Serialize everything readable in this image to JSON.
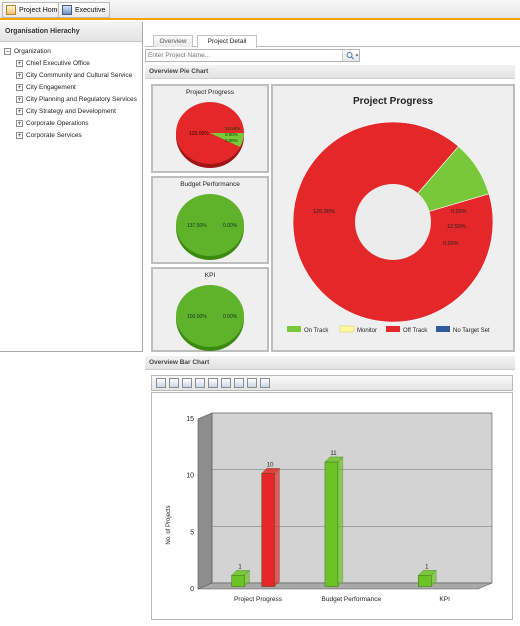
{
  "top_tabs": [
    {
      "label": "Project Home",
      "icon": "project-home-icon"
    },
    {
      "label": "Executive",
      "icon": "executive-icon"
    }
  ],
  "left_panel": {
    "title": "Organisation Hierachy",
    "root": "Organization",
    "children": [
      "Chief Executive Office",
      "City Community and Cultural Service",
      "City Engagement",
      "City Planning and Regulatory Services",
      "City Strategy and Development",
      "Corporate Operations",
      "Corporate Services"
    ]
  },
  "main_tabs": [
    "Overview",
    "Project Detail"
  ],
  "search": {
    "placeholder": "Enter Project Name..."
  },
  "pie_section": {
    "title": "Overview Pie Chart",
    "mini": [
      {
        "title": "Project Progress",
        "labels": [
          "125.00%",
          "12.50%",
          "0.00%",
          "0.00%"
        ]
      },
      {
        "title": "Budget Performance",
        "labels": [
          "137.50%",
          "0.00%"
        ]
      },
      {
        "title": "KPI",
        "labels": [
          "100.00%",
          "0.00%"
        ]
      }
    ]
  },
  "bar_section": {
    "title": "Overview Bar Chart"
  },
  "colors": {
    "on_track": "#79c83a",
    "monitor": "#fff799",
    "off_track": "#e4282a",
    "no_target": "#2f5b9a",
    "accent": "#f0a30a"
  },
  "chart_data": [
    {
      "type": "pie",
      "title": "Project Progress",
      "slices": [
        {
          "name": "Off Track",
          "value": 125.0,
          "color": "#e4282a"
        },
        {
          "name": "On Track",
          "value": 12.5,
          "color": "#79c83a"
        },
        {
          "name": "Monitor",
          "value": 0.0,
          "color": "#fff799"
        },
        {
          "name": "No Target Set",
          "value": 0.0,
          "color": "#2f5b9a"
        }
      ],
      "slice_labels": [
        "125.00%",
        "0.00%",
        "12.50%",
        "0.00%"
      ],
      "legend": [
        "On Track",
        "Monitor",
        "Off Track",
        "No Target Set"
      ],
      "legend_position": "bottom"
    },
    {
      "type": "bar",
      "categories": [
        "Project Progress",
        "Budget Performance",
        "KPI"
      ],
      "series": [
        {
          "values": [
            1,
            11,
            1
          ],
          "color": "#6cc326"
        },
        {
          "values": [
            10,
            0,
            0
          ],
          "color": "#e4282a"
        }
      ],
      "ylabel": "No. of Projects",
      "ylim": [
        0,
        15
      ],
      "yticks": [
        0,
        5,
        10,
        15
      ],
      "grid": true
    }
  ]
}
